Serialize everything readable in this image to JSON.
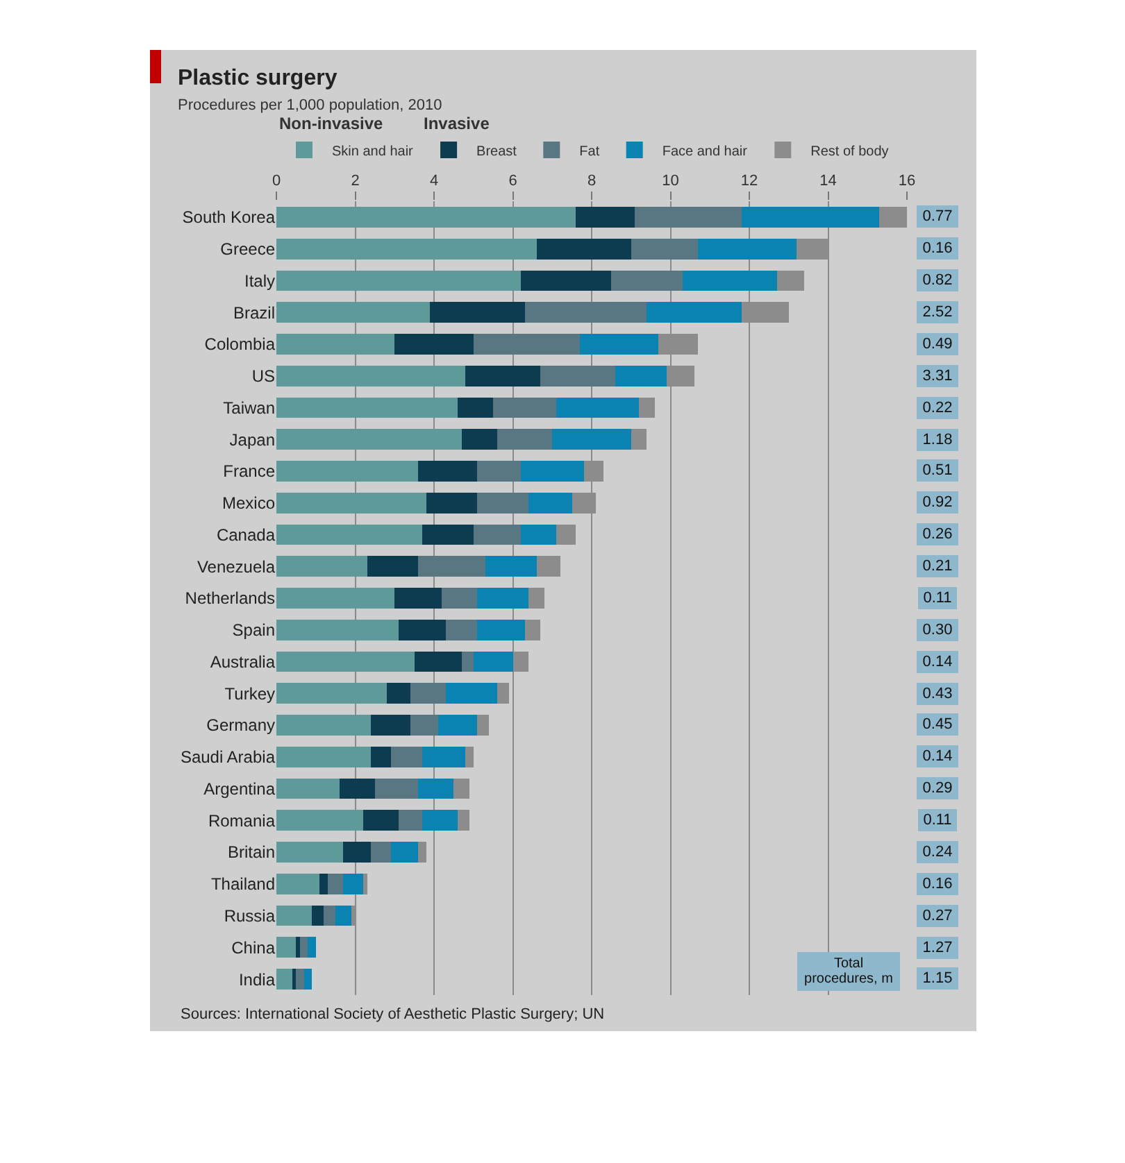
{
  "chart_data": [
    {
      "type": "bar",
      "title": "Plastic surgery",
      "subtitle": "Procedures per 1,000 population, 2010",
      "orientation": "horizontal",
      "stacked": true,
      "grid": "x",
      "legend": "top",
      "categories": [
        "South Korea",
        "Greece",
        "Italy",
        "Brazil",
        "Colombia",
        "US",
        "Taiwan",
        "Japan",
        "France",
        "Mexico",
        "Canada",
        "Venezuela",
        "Netherlands",
        "Spain",
        "Australia",
        "Turkey",
        "Germany",
        "Saudi Arabia",
        "Argentina",
        "Romania",
        "Britain",
        "Thailand",
        "Russia",
        "China",
        "India"
      ],
      "xlim": [
        0,
        16
      ],
      "xticks": [
        0,
        2,
        4,
        6,
        8,
        10,
        12,
        14,
        16
      ],
      "series": [
        {
          "name": "Skin and hair",
          "color": "#5e9a9a",
          "values": [
            7.6,
            6.6,
            6.2,
            3.9,
            3.0,
            4.8,
            4.6,
            4.7,
            3.6,
            3.8,
            3.7,
            2.3,
            3.0,
            3.1,
            3.5,
            2.8,
            2.4,
            2.4,
            1.6,
            2.2,
            1.7,
            1.1,
            0.9,
            0.5,
            0.4
          ]
        },
        {
          "name": "Breast",
          "color": "#0d3b4f",
          "values": [
            1.5,
            2.4,
            2.3,
            2.4,
            2.0,
            1.9,
            0.9,
            0.9,
            1.5,
            1.3,
            1.3,
            1.3,
            1.2,
            1.2,
            1.2,
            0.6,
            1.0,
            0.5,
            0.9,
            0.9,
            0.7,
            0.2,
            0.3,
            0.1,
            0.1
          ]
        },
        {
          "name": "Fat",
          "color": "#587783",
          "values": [
            2.7,
            1.7,
            1.8,
            3.1,
            2.7,
            1.9,
            1.6,
            1.4,
            1.1,
            1.3,
            1.2,
            1.7,
            0.9,
            0.8,
            0.3,
            0.9,
            0.7,
            0.8,
            1.1,
            0.6,
            0.5,
            0.4,
            0.3,
            0.2,
            0.2
          ]
        },
        {
          "name": "Face and hair",
          "color": "#0a82b2",
          "values": [
            3.5,
            2.5,
            2.4,
            2.4,
            2.0,
            1.3,
            2.1,
            2.0,
            1.6,
            1.1,
            0.9,
            1.3,
            1.3,
            1.2,
            1.0,
            1.3,
            1.0,
            1.1,
            0.9,
            0.9,
            0.7,
            0.5,
            0.4,
            0.2,
            0.2
          ]
        },
        {
          "name": "Rest of body",
          "color": "#8c8c8c",
          "values": [
            0.7,
            0.8,
            0.7,
            1.2,
            1.0,
            0.7,
            0.4,
            0.4,
            0.5,
            0.6,
            0.5,
            0.6,
            0.4,
            0.4,
            0.4,
            0.3,
            0.3,
            0.2,
            0.4,
            0.3,
            0.2,
            0.1,
            0.1,
            0,
            0
          ]
        }
      ],
      "annotations": [
        "Non-invasive",
        "Invasive",
        "Sources: International Society of Aesthetic Plastic Surgery; UN"
      ]
    },
    {
      "type": "other",
      "title": "Total procedures, m",
      "categories": [
        null,
        null,
        null,
        null,
        null,
        null,
        null,
        null,
        null,
        null,
        null,
        null,
        null,
        null,
        null,
        null,
        null,
        null,
        null,
        null,
        null,
        null,
        null,
        null,
        null
      ],
      "values": [
        0.77,
        0.16,
        0.82,
        2.52,
        0.49,
        3.31,
        0.22,
        1.18,
        0.51,
        0.92,
        0.26,
        0.21,
        0.11,
        0.3,
        0.14,
        0.43,
        0.45,
        0.14,
        0.29,
        0.11,
        0.24,
        0.16,
        0.27,
        1.27,
        1.15
      ],
      "value_labels": [
        "0.77",
        "0.16",
        "0.82",
        "2.52",
        "0.49",
        "3.31",
        "0.22",
        "1.18",
        "0.51",
        "0.92",
        "0.26",
        "0.21",
        "0.11",
        "0.30",
        "0.14",
        "0.43",
        "0.45",
        "0.14",
        "0.29",
        "0.11",
        "0.24",
        "0.16",
        "0.27",
        "1.27",
        "1.15"
      ]
    }
  ]
}
